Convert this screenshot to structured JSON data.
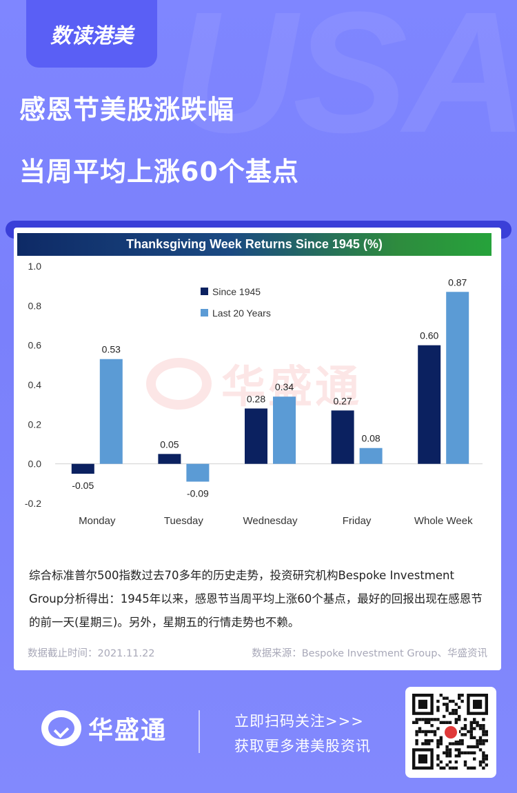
{
  "brand_tag": "数读港美",
  "bg_watermark": "USA",
  "headline_1": "感恩节美股涨跌幅",
  "headline_2": "当周平均上涨60个基点",
  "chart_data": {
    "type": "bar",
    "title": "Thanksgiving Week Returns Since 1945 (%)",
    "categories": [
      "Monday",
      "Tuesday",
      "Wednesday",
      "Friday",
      "Whole Week"
    ],
    "series": [
      {
        "name": "Since 1945",
        "values": [
          -0.05,
          0.05,
          0.28,
          0.27,
          0.6
        ],
        "labels": [
          "-0.05",
          "0.05",
          "0.28",
          "0.27",
          "0.60"
        ],
        "color": "#0b2160"
      },
      {
        "name": "Last 20 Years",
        "values": [
          0.53,
          -0.09,
          0.34,
          0.08,
          0.87
        ],
        "labels": [
          "0.53",
          "-0.09",
          "0.34",
          "0.08",
          "0.87"
        ],
        "color": "#5b9bd5"
      }
    ],
    "yticks": [
      "1.0",
      "0.8",
      "0.6",
      "0.4",
      "0.2",
      "0.0",
      "-0.2"
    ],
    "ylim": [
      -0.2,
      1.0
    ],
    "legend": "top-center",
    "grid": false
  },
  "chart_watermark": "华盛通",
  "description": "综合标准普尔500指数过去70多年的历史走势，投资研究机构Bespoke Investment Group分析得出：1945年以来，感恩节当周平均上涨60个基点，最好的回报出现在感恩节的前一天(星期三)。另外，星期五的行情走势也不赖。",
  "meta_date": "数据截止时间：2021.11.22",
  "meta_source": "数据来源：Bespoke Investment Group、华盛资讯",
  "footer": {
    "logo_text": "华盛通",
    "cta_line1": "立即扫码关注>>>",
    "cta_line2": "获取更多港美股资讯"
  },
  "colors": {
    "accent": "#5a5ff5",
    "dark_bar": "#0b2160",
    "light_bar": "#5b9bd5"
  }
}
